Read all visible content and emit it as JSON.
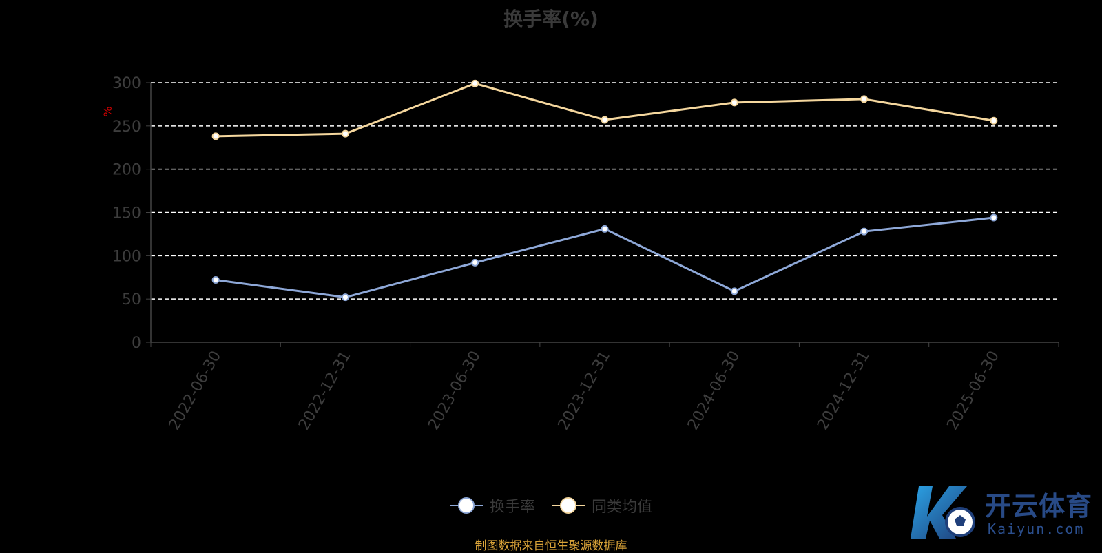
{
  "chart_data": {
    "type": "line",
    "title": "换手率(%)",
    "ylabel": "%",
    "xlabel": "",
    "categories": [
      "2022-06-30",
      "2022-12-31",
      "2023-06-30",
      "2023-12-31",
      "2024-06-30",
      "2024-12-31",
      "2025-06-30"
    ],
    "yticks": [
      "0",
      "50",
      "100",
      "150",
      "200",
      "250",
      "300"
    ],
    "ylim": [
      0,
      300
    ],
    "grid": true,
    "legend_position": "bottom",
    "series": [
      {
        "name": "换手率",
        "values": [
          72,
          52,
          92,
          131,
          59,
          128,
          144
        ],
        "color": "#8ea8d8"
      },
      {
        "name": "同类均值",
        "values": [
          238,
          241,
          299,
          257,
          277,
          281,
          256
        ],
        "color": "#f5d79e"
      }
    ],
    "source": "制图数据来自恒生聚源数据库"
  },
  "watermark": {
    "brand": "开云体育",
    "domain": "Kaiyun.com",
    "logo_letter": "K",
    "colors": {
      "primary": "#1f3f7a",
      "accent": "#2ba3e6"
    }
  }
}
